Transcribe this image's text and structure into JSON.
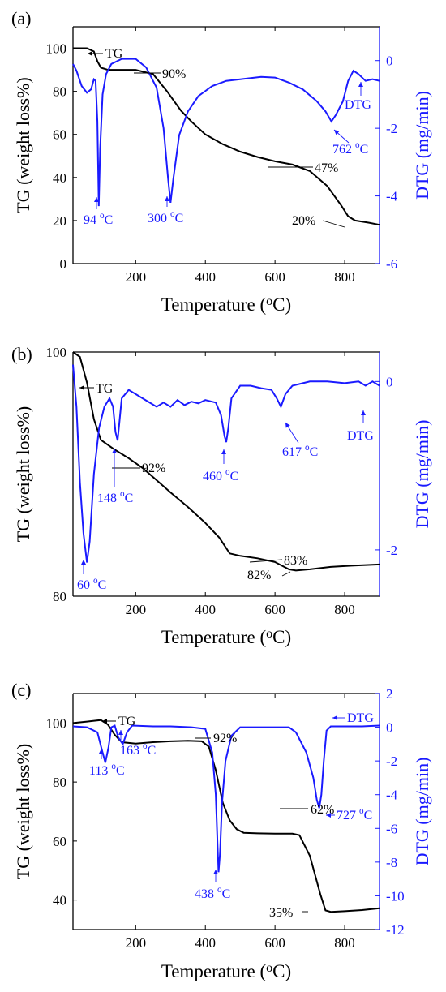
{
  "chart_data": [
    {
      "type": "line",
      "panel_label": "(a)",
      "xlabel": "Temperature (oC)",
      "ylabel_left": "TG (weight loss%)",
      "ylabel_right": "DTG (mg/min)",
      "xlim": [
        20,
        900
      ],
      "x_ticks": [
        200,
        400,
        600,
        800
      ],
      "ylim_left": [
        0,
        110
      ],
      "y_ticks_left": [
        0,
        20,
        40,
        60,
        80,
        100
      ],
      "ylim_right": [
        -6,
        1
      ],
      "y_ticks_right": [
        -6,
        -4,
        -2,
        0
      ],
      "series": [
        {
          "name": "TG",
          "axis": "left",
          "color": "#000000",
          "points": [
            [
              20,
              100
            ],
            [
              60,
              100
            ],
            [
              80,
              98.5
            ],
            [
              90,
              94
            ],
            [
              100,
              91
            ],
            [
              120,
              90
            ],
            [
              200,
              90
            ],
            [
              250,
              88
            ],
            [
              290,
              80
            ],
            [
              330,
              71
            ],
            [
              360,
              66
            ],
            [
              400,
              60
            ],
            [
              450,
              55.5
            ],
            [
              500,
              52
            ],
            [
              550,
              49.5
            ],
            [
              600,
              47.5
            ],
            [
              650,
              46
            ],
            [
              700,
              43
            ],
            [
              750,
              36
            ],
            [
              790,
              27
            ],
            [
              810,
              22
            ],
            [
              830,
              20
            ],
            [
              870,
              19
            ],
            [
              900,
              18
            ]
          ]
        },
        {
          "name": "DTG",
          "axis": "right",
          "color": "#1a1aff",
          "points": [
            [
              20,
              -0.1
            ],
            [
              30,
              -0.3
            ],
            [
              45,
              -0.75
            ],
            [
              60,
              -0.95
            ],
            [
              72,
              -0.85
            ],
            [
              80,
              -0.55
            ],
            [
              85,
              -0.6
            ],
            [
              90,
              -1.8
            ],
            [
              94,
              -4.3
            ],
            [
              98,
              -2.6
            ],
            [
              105,
              -1.0
            ],
            [
              115,
              -0.4
            ],
            [
              130,
              -0.1
            ],
            [
              160,
              0.05
            ],
            [
              200,
              0.05
            ],
            [
              230,
              -0.2
            ],
            [
              260,
              -0.8
            ],
            [
              280,
              -2.0
            ],
            [
              293,
              -3.5
            ],
            [
              300,
              -4.2
            ],
            [
              308,
              -3.5
            ],
            [
              325,
              -2.2
            ],
            [
              350,
              -1.5
            ],
            [
              380,
              -1.05
            ],
            [
              420,
              -0.75
            ],
            [
              460,
              -0.6
            ],
            [
              500,
              -0.55
            ],
            [
              560,
              -0.48
            ],
            [
              600,
              -0.5
            ],
            [
              640,
              -0.65
            ],
            [
              680,
              -0.85
            ],
            [
              720,
              -1.2
            ],
            [
              745,
              -1.5
            ],
            [
              762,
              -1.8
            ],
            [
              775,
              -1.6
            ],
            [
              795,
              -1.2
            ],
            [
              810,
              -0.6
            ],
            [
              825,
              -0.3
            ],
            [
              840,
              -0.4
            ],
            [
              860,
              -0.6
            ],
            [
              880,
              -0.55
            ],
            [
              900,
              -0.6
            ]
          ]
        }
      ],
      "annotations": [
        {
          "text": "TG",
          "color": "#000000"
        },
        {
          "text": "90%",
          "color": "#000000"
        },
        {
          "text": "47%",
          "color": "#000000"
        },
        {
          "text": "20%",
          "color": "#000000"
        },
        {
          "text": "94 oC",
          "color": "#1a1aff"
        },
        {
          "text": "300 oC",
          "color": "#1a1aff"
        },
        {
          "text": "762 oC",
          "color": "#1a1aff"
        },
        {
          "text": "DTG",
          "color": "#1a1aff"
        }
      ]
    },
    {
      "type": "line",
      "panel_label": "(b)",
      "xlabel": "Temperature (oC)",
      "ylabel_left": "TG (weight loss%)",
      "ylabel_right": "DTG (mg/min)",
      "xlim": [
        20,
        900
      ],
      "x_ticks": [
        200,
        400,
        600,
        800
      ],
      "ylim_left": [
        80,
        100
      ],
      "y_ticks_left": [
        80,
        100
      ],
      "ylim_right": [
        -2.55,
        0.35
      ],
      "y_ticks_right": [
        -2,
        0
      ],
      "series": [
        {
          "name": "TG",
          "axis": "left",
          "color": "#000000",
          "points": [
            [
              20,
              100
            ],
            [
              40,
              99.6
            ],
            [
              60,
              97.5
            ],
            [
              80,
              94.5
            ],
            [
              100,
              92.8
            ],
            [
              140,
              92
            ],
            [
              180,
              91.3
            ],
            [
              220,
              90.5
            ],
            [
              260,
              89.5
            ],
            [
              300,
              88.5
            ],
            [
              350,
              87.3
            ],
            [
              400,
              86
            ],
            [
              440,
              84.8
            ],
            [
              470,
              83.5
            ],
            [
              500,
              83.3
            ],
            [
              550,
              83.1
            ],
            [
              600,
              82.8
            ],
            [
              640,
              82.2
            ],
            [
              660,
              82.1
            ],
            [
              700,
              82.2
            ],
            [
              760,
              82.4
            ],
            [
              820,
              82.5
            ],
            [
              900,
              82.6
            ]
          ]
        },
        {
          "name": "DTG",
          "axis": "right",
          "color": "#1a1aff",
          "points": [
            [
              20,
              0.2
            ],
            [
              30,
              -0.3
            ],
            [
              40,
              -1.2
            ],
            [
              50,
              -1.8
            ],
            [
              60,
              -2.15
            ],
            [
              68,
              -1.9
            ],
            [
              80,
              -1.1
            ],
            [
              95,
              -0.55
            ],
            [
              110,
              -0.3
            ],
            [
              125,
              -0.2
            ],
            [
              135,
              -0.3
            ],
            [
              142,
              -0.6
            ],
            [
              148,
              -0.7
            ],
            [
              153,
              -0.5
            ],
            [
              160,
              -0.2
            ],
            [
              180,
              -0.1
            ],
            [
              220,
              -0.2
            ],
            [
              260,
              -0.3
            ],
            [
              280,
              -0.25
            ],
            [
              300,
              -0.3
            ],
            [
              320,
              -0.22
            ],
            [
              340,
              -0.28
            ],
            [
              360,
              -0.24
            ],
            [
              380,
              -0.26
            ],
            [
              400,
              -0.22
            ],
            [
              430,
              -0.25
            ],
            [
              445,
              -0.4
            ],
            [
              455,
              -0.65
            ],
            [
              460,
              -0.72
            ],
            [
              466,
              -0.55
            ],
            [
              475,
              -0.2
            ],
            [
              500,
              -0.05
            ],
            [
              530,
              -0.05
            ],
            [
              560,
              -0.08
            ],
            [
              590,
              -0.1
            ],
            [
              605,
              -0.2
            ],
            [
              617,
              -0.3
            ],
            [
              630,
              -0.15
            ],
            [
              650,
              -0.05
            ],
            [
              700,
              0.0
            ],
            [
              750,
              0.0
            ],
            [
              800,
              -0.02
            ],
            [
              840,
              0.0
            ],
            [
              860,
              -0.05
            ],
            [
              880,
              0.0
            ],
            [
              900,
              -0.05
            ]
          ]
        }
      ],
      "annotations": [
        {
          "text": "TG",
          "color": "#000000"
        },
        {
          "text": "92%",
          "color": "#000000"
        },
        {
          "text": "83%",
          "color": "#000000"
        },
        {
          "text": "82%",
          "color": "#000000"
        },
        {
          "text": "60 oC",
          "color": "#1a1aff"
        },
        {
          "text": "148 oC",
          "color": "#1a1aff"
        },
        {
          "text": "460 oC",
          "color": "#1a1aff"
        },
        {
          "text": "617 oC",
          "color": "#1a1aff"
        },
        {
          "text": "DTG",
          "color": "#1a1aff"
        }
      ]
    },
    {
      "type": "line",
      "panel_label": "(c)",
      "xlabel": "Temperature (oC)",
      "ylabel_left": "TG (weight loss%)",
      "ylabel_right": "DTG (mg/min)",
      "xlim": [
        20,
        900
      ],
      "x_ticks": [
        200,
        400,
        600,
        800
      ],
      "ylim_left": [
        30,
        110
      ],
      "y_ticks_left": [
        40,
        60,
        80,
        100
      ],
      "ylim_right": [
        -12,
        2
      ],
      "y_ticks_right": [
        -12,
        -10,
        -8,
        -6,
        -4,
        -2,
        0,
        2
      ],
      "series": [
        {
          "name": "TG",
          "axis": "left",
          "color": "#000000",
          "points": [
            [
              20,
              100
            ],
            [
              60,
              100.5
            ],
            [
              100,
              101
            ],
            [
              120,
              99.5
            ],
            [
              140,
              96
            ],
            [
              160,
              93.5
            ],
            [
              200,
              93
            ],
            [
              250,
              93.5
            ],
            [
              300,
              93.8
            ],
            [
              350,
              94
            ],
            [
              390,
              93.8
            ],
            [
              410,
              92
            ],
            [
              430,
              84
            ],
            [
              450,
              73
            ],
            [
              470,
              67
            ],
            [
              490,
              64
            ],
            [
              510,
              62.8
            ],
            [
              550,
              62.6
            ],
            [
              600,
              62.5
            ],
            [
              650,
              62.5
            ],
            [
              670,
              62
            ],
            [
              700,
              55
            ],
            [
              730,
              42
            ],
            [
              745,
              36.5
            ],
            [
              760,
              36
            ],
            [
              800,
              36.2
            ],
            [
              850,
              36.6
            ],
            [
              900,
              37.2
            ]
          ]
        },
        {
          "name": "DTG",
          "axis": "right",
          "color": "#1a1aff",
          "points": [
            [
              20,
              0.05
            ],
            [
              60,
              0.0
            ],
            [
              90,
              -0.3
            ],
            [
              105,
              -1.5
            ],
            [
              113,
              -2.1
            ],
            [
              122,
              -1.2
            ],
            [
              130,
              0.0
            ],
            [
              140,
              0.1
            ],
            [
              150,
              -0.6
            ],
            [
              163,
              -1.0
            ],
            [
              175,
              -0.3
            ],
            [
              190,
              0.1
            ],
            [
              250,
              0.05
            ],
            [
              300,
              0.05
            ],
            [
              360,
              0.0
            ],
            [
              400,
              -0.1
            ],
            [
              420,
              -1.5
            ],
            [
              430,
              -4.0
            ],
            [
              435,
              -7.0
            ],
            [
              438,
              -8.6
            ],
            [
              442,
              -7.5
            ],
            [
              448,
              -4.5
            ],
            [
              458,
              -2.0
            ],
            [
              475,
              -0.5
            ],
            [
              500,
              0.0
            ],
            [
              560,
              0.0
            ],
            [
              640,
              0.0
            ],
            [
              660,
              -0.3
            ],
            [
              690,
              -1.5
            ],
            [
              710,
              -3.0
            ],
            [
              720,
              -4.3
            ],
            [
              727,
              -4.8
            ],
            [
              733,
              -4.0
            ],
            [
              740,
              -2.0
            ],
            [
              748,
              -0.2
            ],
            [
              760,
              0.05
            ],
            [
              800,
              0.05
            ],
            [
              850,
              0.05
            ],
            [
              900,
              0.1
            ]
          ]
        }
      ],
      "annotations": [
        {
          "text": "TG",
          "color": "#000000"
        },
        {
          "text": "92%",
          "color": "#000000"
        },
        {
          "text": "62%",
          "color": "#000000"
        },
        {
          "text": "35%",
          "color": "#000000"
        },
        {
          "text": "113 oC",
          "color": "#1a1aff"
        },
        {
          "text": "163 oC",
          "color": "#1a1aff"
        },
        {
          "text": "438 oC",
          "color": "#1a1aff"
        },
        {
          "text": "727 oC",
          "color": "#1a1aff"
        },
        {
          "text": "DTG",
          "color": "#1a1aff"
        }
      ]
    }
  ]
}
